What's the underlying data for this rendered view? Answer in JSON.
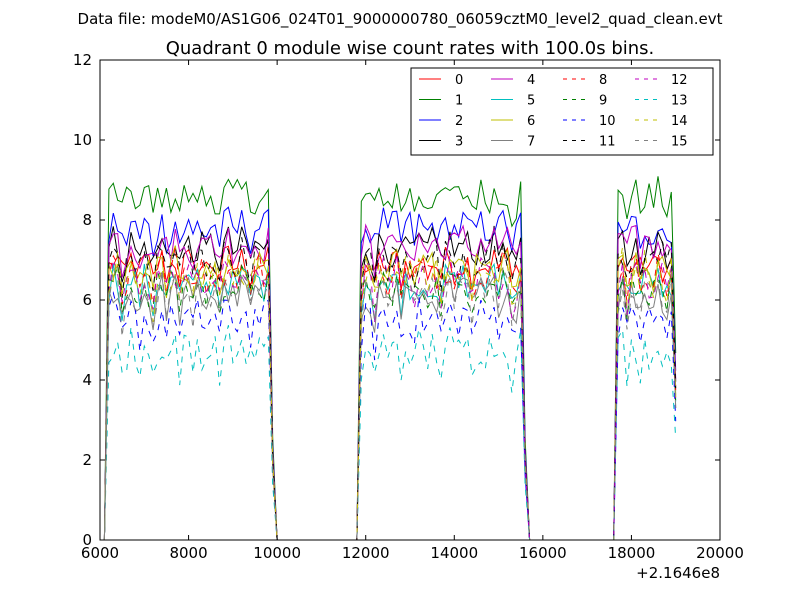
{
  "header": {
    "data_file": "Data file: modeM0/AS1G06_024T01_9000000780_06059cztM0_level2_quad_clean.evt"
  },
  "chart_data": {
    "type": "line",
    "title": "Quadrant 0 module wise count rates with 100.0s bins.",
    "xlabel": "",
    "ylabel": "",
    "offset_label": "+2.1646e8",
    "xlim": [
      6000,
      20000
    ],
    "ylim": [
      0,
      12
    ],
    "xticks": [
      6000,
      8000,
      10000,
      12000,
      14000,
      16000,
      18000,
      20000
    ],
    "yticks": [
      0,
      2,
      4,
      6,
      8,
      10,
      12
    ],
    "xtick_labels": [
      "6000",
      "8000",
      "10000",
      "12000",
      "14000",
      "16000",
      "18000",
      "20000"
    ],
    "ytick_labels": [
      "0",
      "2",
      "4",
      "6",
      "8",
      "10",
      "12"
    ],
    "bin_width": 100,
    "legend_position": "top-right",
    "segments": [
      {
        "start": 6200,
        "end": 9900
      },
      {
        "start": 11900,
        "end": 15600
      },
      {
        "start": 17700,
        "end": 19000
      }
    ],
    "series": [
      {
        "name": "0",
        "color": "#ff0000",
        "dash": "solid",
        "base": 6.8
      },
      {
        "name": "1",
        "color": "#008000",
        "dash": "solid",
        "base": 8.5
      },
      {
        "name": "2",
        "color": "#0000ff",
        "dash": "solid",
        "base": 7.7
      },
      {
        "name": "3",
        "color": "#000000",
        "dash": "solid",
        "base": 7.2
      },
      {
        "name": "4",
        "color": "#bf00bf",
        "dash": "solid",
        "base": 7.3
      },
      {
        "name": "5",
        "color": "#00bfbf",
        "dash": "solid",
        "base": 6.3
      },
      {
        "name": "6",
        "color": "#bfbf00",
        "dash": "solid",
        "base": 6.6
      },
      {
        "name": "7",
        "color": "#808080",
        "dash": "solid",
        "base": 6.0
      },
      {
        "name": "8",
        "color": "#ff0000",
        "dash": "dashed",
        "base": 6.6
      },
      {
        "name": "9",
        "color": "#008000",
        "dash": "dashed",
        "base": 6.2
      },
      {
        "name": "10",
        "color": "#0000ff",
        "dash": "dashed",
        "base": 5.4
      },
      {
        "name": "11",
        "color": "#000000",
        "dash": "dashed",
        "base": 6.9
      },
      {
        "name": "12",
        "color": "#bf00bf",
        "dash": "dashed",
        "base": 6.4
      },
      {
        "name": "13",
        "color": "#00bfbf",
        "dash": "dashed",
        "base": 4.6
      },
      {
        "name": "14",
        "color": "#bfbf00",
        "dash": "dashed",
        "base": 6.5
      },
      {
        "name": "15",
        "color": "#808080",
        "dash": "dashed",
        "base": 6.0
      }
    ]
  }
}
